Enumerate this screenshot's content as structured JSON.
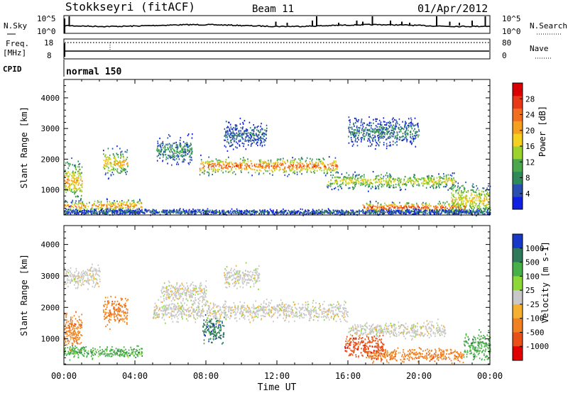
{
  "header": {
    "station": "Stokkseyri (fitACF)",
    "beam": "Beam 11",
    "date": "01/Apr/2012"
  },
  "noise_panel": {
    "left_label": "N.Sky",
    "right_label": "N.Search",
    "ticks": [
      "10^5",
      "10^0"
    ]
  },
  "freq_panel": {
    "left_label_1": "Freq.",
    "left_label_2": "[MHz]",
    "left_ticks": [
      "18",
      "8"
    ],
    "right_label": "Nave",
    "right_ticks": [
      "80",
      "0"
    ]
  },
  "cpid": {
    "label": "CPID",
    "value": "normal 150"
  },
  "chart_data": [
    {
      "type": "heatmap",
      "title": "",
      "ylabel": "Slant Range [km]",
      "xlabel": "",
      "x_ticks": [
        "00:00",
        "04:00",
        "08:00",
        "12:00",
        "16:00",
        "20:00",
        "00:00"
      ],
      "y_ticks": [
        "1000",
        "2000",
        "3000",
        "4000"
      ],
      "xlim": [
        0,
        24
      ],
      "ylim": [
        180,
        4600
      ],
      "colorbar": {
        "label": "Power [dB]",
        "ticks": [
          "4",
          "8",
          "12",
          "16",
          "20",
          "24",
          "28"
        ],
        "colors": [
          "#1020e0",
          "#2a4fb0",
          "#2f8a5a",
          "#4aa84a",
          "#9cd22c",
          "#f4d020",
          "#f5a020",
          "#f07020",
          "#e83818",
          "#d80000"
        ]
      },
      "features": [
        {
          "start_ut": 0.0,
          "end_ut": 4.4,
          "range_km": 500,
          "range_width_km": 220,
          "level": 0.72
        },
        {
          "start_ut": 0.0,
          "end_ut": 1.0,
          "range_km": 1300,
          "range_width_km": 800,
          "level": 0.65
        },
        {
          "start_ut": 2.2,
          "end_ut": 3.6,
          "range_km": 1900,
          "range_width_km": 500,
          "level": 0.62
        },
        {
          "start_ut": 5.2,
          "end_ut": 7.2,
          "range_km": 2300,
          "range_width_km": 500,
          "level": 0.3
        },
        {
          "start_ut": 7.6,
          "end_ut": 15.4,
          "range_km": 1800,
          "range_width_km": 320,
          "level": 0.8
        },
        {
          "start_ut": 14.8,
          "end_ut": 22.0,
          "range_km": 1300,
          "range_width_km": 300,
          "level": 0.55
        },
        {
          "start_ut": 16.8,
          "end_ut": 22.6,
          "range_km": 450,
          "range_width_km": 200,
          "level": 0.85
        },
        {
          "start_ut": 21.8,
          "end_ut": 24.0,
          "range_km": 700,
          "range_width_km": 600,
          "level": 0.6
        },
        {
          "start_ut": 16.0,
          "end_ut": 20.0,
          "range_km": 2900,
          "range_width_km": 500,
          "level": 0.25
        },
        {
          "start_ut": 9.0,
          "end_ut": 11.4,
          "range_km": 2800,
          "range_width_km": 500,
          "level": 0.2
        },
        {
          "start_ut": 0.0,
          "end_ut": 24.0,
          "range_km": 300,
          "range_width_km": 100,
          "level": 0.2
        }
      ]
    },
    {
      "type": "heatmap",
      "title": "",
      "ylabel": "Slant Range [km]",
      "xlabel": "Time UT",
      "x_ticks": [
        "00:00",
        "04:00",
        "08:00",
        "12:00",
        "16:00",
        "20:00",
        "00:00"
      ],
      "y_ticks": [
        "1000",
        "2000",
        "3000",
        "4000"
      ],
      "xlim": [
        0,
        24
      ],
      "ylim": [
        180,
        4600
      ],
      "colorbar": {
        "label": "Velocity [m s-1]",
        "ticks": [
          "1000",
          "500",
          "100",
          "25",
          "-25",
          "-100",
          "-500",
          "-1000"
        ],
        "colors": [
          "#1838c8",
          "#2f7a5a",
          "#48b048",
          "#8cd838",
          "#c8c8c8",
          "#f5b030",
          "#f08020",
          "#e85018",
          "#e00000"
        ]
      },
      "features": [
        {
          "start_ut": 0.0,
          "end_ut": 4.4,
          "range_km": 600,
          "range_width_km": 220,
          "class": 2
        },
        {
          "start_ut": 0.0,
          "end_ut": 1.0,
          "range_km": 1300,
          "range_width_km": 700,
          "class": 6
        },
        {
          "start_ut": 2.2,
          "end_ut": 3.6,
          "range_km": 1900,
          "range_width_km": 500,
          "class": 6
        },
        {
          "start_ut": 5.0,
          "end_ut": 16.0,
          "range_km": 1900,
          "range_width_km": 350,
          "class": 4
        },
        {
          "start_ut": 5.4,
          "end_ut": 8.0,
          "range_km": 2500,
          "range_width_km": 400,
          "class": 4
        },
        {
          "start_ut": 7.8,
          "end_ut": 9.0,
          "range_km": 1300,
          "range_width_km": 500,
          "class": 1
        },
        {
          "start_ut": 16.0,
          "end_ut": 21.5,
          "range_km": 1300,
          "range_width_km": 300,
          "class": 4
        },
        {
          "start_ut": 17.0,
          "end_ut": 22.5,
          "range_km": 500,
          "range_width_km": 250,
          "class": 6
        },
        {
          "start_ut": 15.8,
          "end_ut": 18.0,
          "range_km": 800,
          "range_width_km": 400,
          "class": 7
        },
        {
          "start_ut": 22.5,
          "end_ut": 24.0,
          "range_km": 800,
          "range_width_km": 500,
          "class": 2
        },
        {
          "start_ut": 9.0,
          "end_ut": 11.0,
          "range_km": 3000,
          "range_width_km": 400,
          "class": 4
        },
        {
          "start_ut": 0.0,
          "end_ut": 2.0,
          "range_km": 3000,
          "range_width_km": 400,
          "class": 4
        }
      ]
    }
  ]
}
